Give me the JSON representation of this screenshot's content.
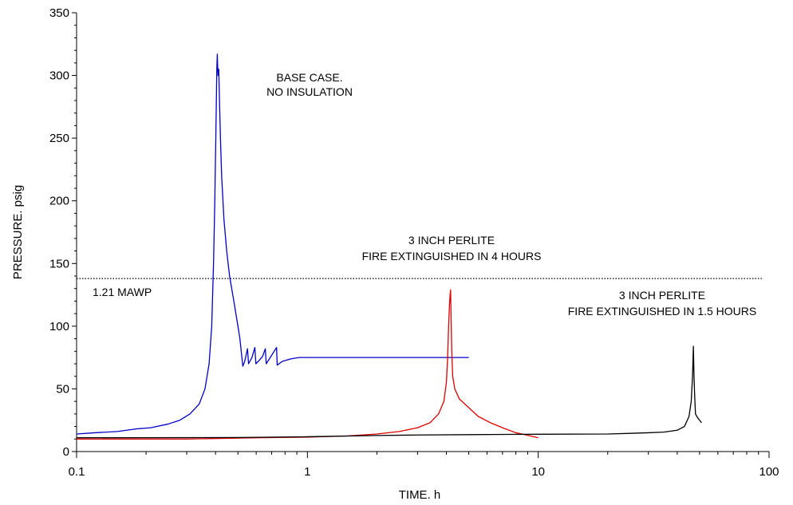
{
  "chart_data": {
    "type": "line",
    "title": "",
    "xlabel": "TIME. h",
    "ylabel": "PRESSURE. psig",
    "x_scale": "log",
    "xlim": [
      0.1,
      100
    ],
    "ylim": [
      0,
      350
    ],
    "x_ticks": [
      0.1,
      1,
      10,
      100
    ],
    "x_tick_labels": [
      "0.1",
      "1",
      "10",
      "100"
    ],
    "y_ticks": [
      0,
      50,
      100,
      150,
      200,
      250,
      300,
      350
    ],
    "y_tick_labels": [
      "0",
      "50",
      "100",
      "150",
      "200",
      "250",
      "300",
      "350"
    ],
    "grid": false,
    "colors": {
      "blue": "#0000c8",
      "red": "#dc0000",
      "black": "#000000"
    },
    "series": [
      {
        "color": "#0000c8",
        "points": [
          [
            0.1,
            14
          ],
          [
            0.12,
            15
          ],
          [
            0.15,
            16
          ],
          [
            0.18,
            18
          ],
          [
            0.21,
            19
          ],
          [
            0.25,
            22
          ],
          [
            0.28,
            25
          ],
          [
            0.31,
            30
          ],
          [
            0.34,
            38
          ],
          [
            0.36,
            50
          ],
          [
            0.375,
            70
          ],
          [
            0.385,
            100
          ],
          [
            0.392,
            150
          ],
          [
            0.397,
            200
          ],
          [
            0.401,
            250
          ],
          [
            0.404,
            290
          ],
          [
            0.405,
            305
          ],
          [
            0.407,
            317
          ],
          [
            0.408,
            310
          ],
          [
            0.41,
            300
          ],
          [
            0.413,
            305
          ],
          [
            0.416,
            280
          ],
          [
            0.42,
            250
          ],
          [
            0.425,
            220
          ],
          [
            0.435,
            185
          ],
          [
            0.447,
            160
          ],
          [
            0.46,
            140
          ],
          [
            0.48,
            120
          ],
          [
            0.5,
            100
          ],
          [
            0.51,
            90
          ],
          [
            0.525,
            68
          ],
          [
            0.535,
            72
          ],
          [
            0.55,
            82
          ],
          [
            0.556,
            70
          ],
          [
            0.575,
            75
          ],
          [
            0.592,
            83
          ],
          [
            0.598,
            70
          ],
          [
            0.62,
            73
          ],
          [
            0.64,
            76
          ],
          [
            0.657,
            82
          ],
          [
            0.663,
            70
          ],
          [
            0.69,
            75
          ],
          [
            0.735,
            83
          ],
          [
            0.74,
            69
          ],
          [
            0.78,
            72
          ],
          [
            0.85,
            74
          ],
          [
            0.92,
            75
          ],
          [
            1.0,
            75
          ],
          [
            2.0,
            75
          ],
          [
            3.0,
            75
          ],
          [
            5.0,
            75
          ]
        ]
      },
      {
        "color": "#dc0000",
        "points": [
          [
            0.1,
            10
          ],
          [
            0.3,
            10
          ],
          [
            0.6,
            11
          ],
          [
            1.0,
            11.5
          ],
          [
            1.5,
            12.5
          ],
          [
            2.0,
            14
          ],
          [
            2.5,
            16
          ],
          [
            3.0,
            19
          ],
          [
            3.4,
            23
          ],
          [
            3.7,
            30
          ],
          [
            3.9,
            40
          ],
          [
            4.0,
            55
          ],
          [
            4.05,
            75
          ],
          [
            4.09,
            100
          ],
          [
            4.12,
            115
          ],
          [
            4.15,
            125
          ],
          [
            4.17,
            129
          ],
          [
            4.19,
            110
          ],
          [
            4.22,
            80
          ],
          [
            4.26,
            60
          ],
          [
            4.35,
            50
          ],
          [
            4.55,
            42
          ],
          [
            5.0,
            35
          ],
          [
            5.5,
            28
          ],
          [
            6.2,
            23
          ],
          [
            7.0,
            19
          ],
          [
            8.0,
            15
          ],
          [
            9.0,
            13
          ],
          [
            10.0,
            11
          ]
        ]
      },
      {
        "color": "#000000",
        "points": [
          [
            0.1,
            11
          ],
          [
            0.5,
            11.2
          ],
          [
            1.0,
            11.8
          ],
          [
            2.0,
            12.8
          ],
          [
            3.0,
            13.2
          ],
          [
            5.0,
            13.5
          ],
          [
            10.0,
            13.8
          ],
          [
            20.0,
            14
          ],
          [
            25.0,
            14.5
          ],
          [
            30.0,
            15
          ],
          [
            35.0,
            15.5
          ],
          [
            40.0,
            17
          ],
          [
            43.0,
            20
          ],
          [
            45.0,
            28
          ],
          [
            46.0,
            40
          ],
          [
            46.6,
            60
          ],
          [
            47.0,
            84
          ],
          [
            47.3,
            60
          ],
          [
            47.6,
            45
          ],
          [
            48.0,
            30
          ],
          [
            49.0,
            27
          ],
          [
            51.0,
            23
          ]
        ]
      }
    ],
    "reference_lines": [
      {
        "label": "1.21 MAWP",
        "y": 138,
        "style": "dotted"
      }
    ],
    "annotations": [
      {
        "lines": [
          "BASE CASE.",
          "NO INSULATION"
        ]
      },
      {
        "lines": [
          "3 INCH PERLITE",
          "FIRE EXTINGUISHED IN 4 HOURS"
        ]
      },
      {
        "lines": [
          "3 INCH PERLITE",
          "FIRE EXTINGUISHED IN 1.5 HOURS"
        ]
      }
    ]
  }
}
